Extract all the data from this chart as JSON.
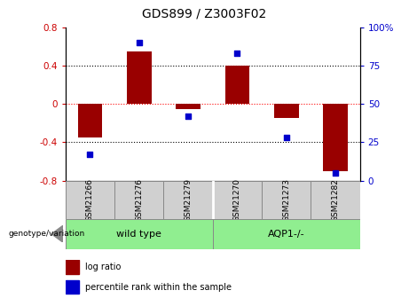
{
  "title": "GDS899 / Z3003F02",
  "samples": [
    "GSM21266",
    "GSM21276",
    "GSM21279",
    "GSM21270",
    "GSM21273",
    "GSM21282"
  ],
  "log_ratios": [
    -0.35,
    0.55,
    -0.05,
    0.4,
    -0.15,
    -0.7
  ],
  "percentile_ranks": [
    17,
    90,
    42,
    83,
    28,
    5
  ],
  "groups": [
    {
      "label": "wild type",
      "indices": [
        0,
        1,
        2
      ],
      "color": "#90ee90"
    },
    {
      "label": "AQP1-/-",
      "indices": [
        3,
        4,
        5
      ],
      "color": "#90ee90"
    }
  ],
  "bar_color": "#990000",
  "dot_color": "#0000cc",
  "ylim_left": [
    -0.8,
    0.8
  ],
  "ylim_right": [
    0,
    100
  ],
  "yticks_left": [
    -0.8,
    -0.4,
    0.0,
    0.4,
    0.8
  ],
  "yticks_right": [
    0,
    25,
    50,
    75,
    100
  ],
  "hlines": [
    -0.4,
    0.0,
    0.4
  ],
  "hline_colors": [
    "black",
    "red",
    "black"
  ],
  "hline_styles": [
    "dotted",
    "dotted",
    "dotted"
  ],
  "background_color": "#ffffff",
  "plot_bg_color": "#ffffff",
  "left_label_color": "#cc0000",
  "right_label_color": "#0000cc",
  "bar_width": 0.5,
  "group_label": "genotype/variation",
  "sample_box_color": "#d0d0d0",
  "legend_items": [
    {
      "label": "log ratio",
      "color": "#990000"
    },
    {
      "label": "percentile rank within the sample",
      "color": "#0000cc"
    }
  ]
}
